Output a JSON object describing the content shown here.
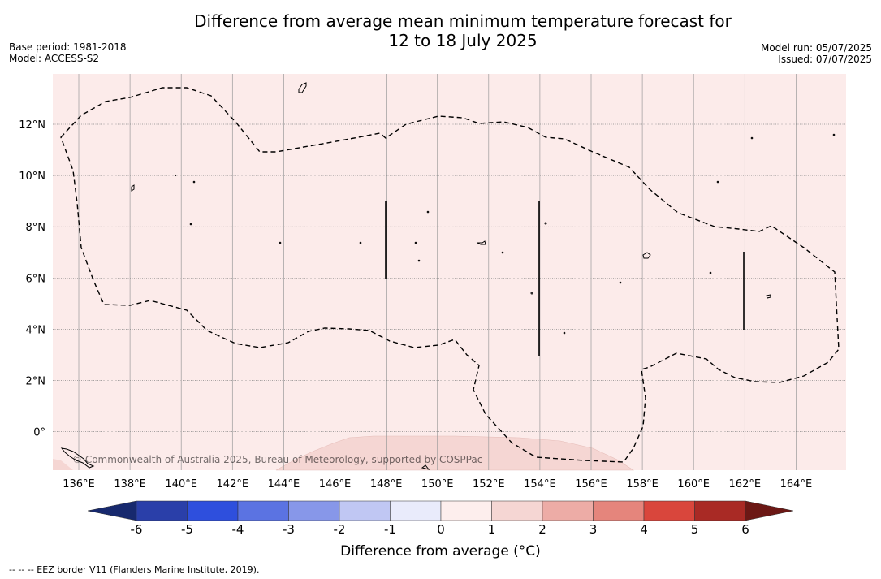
{
  "header": {
    "title_line1": "Difference from average mean minimum temperature forecast for",
    "title_line2": "12 to 18 July 2025",
    "base_period": "Base period: 1981-2018",
    "model": "Model: ACCESS-S2",
    "model_run": "Model run: 05/07/2025",
    "issued": "Issued: 07/07/2025"
  },
  "map": {
    "lon_ticks": [
      "136°E",
      "138°E",
      "140°E",
      "142°E",
      "144°E",
      "146°E",
      "148°E",
      "150°E",
      "152°E",
      "154°E",
      "156°E",
      "158°E",
      "160°E",
      "162°E",
      "164°E"
    ],
    "lat_ticks": [
      "12°N",
      "10°N",
      "8°N",
      "6°N",
      "4°N",
      "2°N",
      "0°"
    ],
    "copyright": "© Commonwealth of Australia 2025, Bureau of Meteorology, supported by COSPPac",
    "background_color": "#fcebea",
    "warm_patch_color": "#f5d6d3"
  },
  "colorbar": {
    "title": "Difference from average (°C)",
    "labels": [
      "-6",
      "-5",
      "-4",
      "-3",
      "-2",
      "-1",
      "0",
      "1",
      "2",
      "3",
      "4",
      "5",
      "6"
    ],
    "colors": [
      "#17296e",
      "#2a3fa9",
      "#2e4fdd",
      "#5b73e2",
      "#8797e9",
      "#c0c7f3",
      "#e9ebfb",
      "#fdeeed",
      "#f5d6d3",
      "#edaca6",
      "#e5857c",
      "#d9463c",
      "#a92a25",
      "#6c1815"
    ]
  },
  "footnote": "--  --  -- EEZ border V11 (Flanders Marine Institute, 2019)."
}
